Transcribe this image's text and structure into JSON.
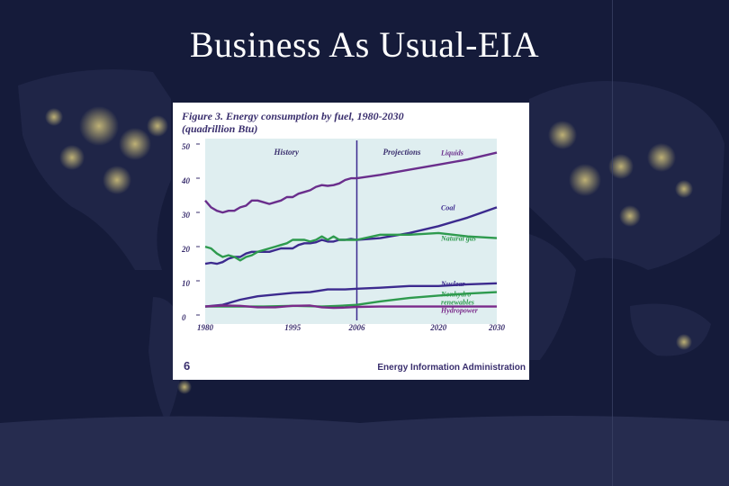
{
  "slide": {
    "title": "Business As Usual-EIA"
  },
  "figure": {
    "caption_line1": "Figure 3. Energy consumption by fuel, 1980-2030",
    "caption_line2": "(quadrillion Btu)",
    "page_number": "6",
    "source": "Energy Information Administration"
  },
  "colors": {
    "background": "#151b3a",
    "plot_bg": "#dfeef0",
    "liquids": "#6a2e8c",
    "coal": "#3c2a8e",
    "natural_gas": "#2e9a4e",
    "nuclear": "#3c2a8e",
    "nonhydro": "#2e9a4e",
    "hydropower": "#7a2a8a",
    "text": "#3a2f6e"
  },
  "chart_data": {
    "type": "line",
    "region_labels": [
      "History",
      "Projections"
    ],
    "divider_year": 2006,
    "x_ticks": [
      1980,
      1995,
      2006,
      2020,
      2030
    ],
    "y_ticks": [
      0,
      10,
      20,
      30,
      40,
      50
    ],
    "xlim": [
      1980,
      2030
    ],
    "ylim": [
      0,
      50
    ],
    "grid": false,
    "legend": "labels at right end of lines",
    "series": [
      {
        "name": "Liquids",
        "color_key": "liquids",
        "points": [
          [
            1980,
            34
          ],
          [
            1981,
            32
          ],
          [
            1982,
            31
          ],
          [
            1983,
            30.5
          ],
          [
            1984,
            31
          ],
          [
            1985,
            31
          ],
          [
            1986,
            32
          ],
          [
            1987,
            32.5
          ],
          [
            1988,
            34
          ],
          [
            1989,
            34
          ],
          [
            1990,
            33.5
          ],
          [
            1991,
            33
          ],
          [
            1992,
            33.5
          ],
          [
            1993,
            34
          ],
          [
            1994,
            35
          ],
          [
            1995,
            35
          ],
          [
            1996,
            36
          ],
          [
            1997,
            36.5
          ],
          [
            1998,
            37
          ],
          [
            1999,
            38
          ],
          [
            2000,
            38.5
          ],
          [
            2001,
            38.3
          ],
          [
            2002,
            38.5
          ],
          [
            2003,
            39
          ],
          [
            2004,
            40
          ],
          [
            2005,
            40.5
          ],
          [
            2006,
            40.5
          ],
          [
            2010,
            41.5
          ],
          [
            2015,
            43
          ],
          [
            2020,
            44.5
          ],
          [
            2025,
            46
          ],
          [
            2030,
            48
          ]
        ]
      },
      {
        "name": "Coal",
        "color_key": "coal",
        "points": [
          [
            1980,
            15.5
          ],
          [
            1981,
            15.8
          ],
          [
            1982,
            15.5
          ],
          [
            1983,
            16
          ],
          [
            1984,
            17
          ],
          [
            1985,
            17.5
          ],
          [
            1986,
            17.5
          ],
          [
            1987,
            18.5
          ],
          [
            1988,
            19
          ],
          [
            1989,
            19
          ],
          [
            1990,
            19
          ],
          [
            1991,
            19
          ],
          [
            1992,
            19.5
          ],
          [
            1993,
            20
          ],
          [
            1994,
            20
          ],
          [
            1995,
            20
          ],
          [
            1996,
            21
          ],
          [
            1997,
            21.5
          ],
          [
            1998,
            21.5
          ],
          [
            1999,
            21.8
          ],
          [
            2000,
            22.5
          ],
          [
            2001,
            22
          ],
          [
            2002,
            22
          ],
          [
            2003,
            22.5
          ],
          [
            2004,
            22.5
          ],
          [
            2005,
            22.8
          ],
          [
            2006,
            22.5
          ],
          [
            2010,
            23
          ],
          [
            2015,
            24.5
          ],
          [
            2020,
            26.5
          ],
          [
            2025,
            29
          ],
          [
            2030,
            32
          ]
        ]
      },
      {
        "name": "Natural gas",
        "color_key": "natural_gas",
        "points": [
          [
            1980,
            20.5
          ],
          [
            1981,
            20
          ],
          [
            1982,
            18.5
          ],
          [
            1983,
            17.5
          ],
          [
            1984,
            18
          ],
          [
            1985,
            17.5
          ],
          [
            1986,
            16.5
          ],
          [
            1987,
            17.5
          ],
          [
            1988,
            18
          ],
          [
            1989,
            19
          ],
          [
            1990,
            19.5
          ],
          [
            1991,
            20
          ],
          [
            1992,
            20.5
          ],
          [
            1993,
            21
          ],
          [
            1994,
            21.5
          ],
          [
            1995,
            22.5
          ],
          [
            1996,
            22.5
          ],
          [
            1997,
            22.5
          ],
          [
            1998,
            22
          ],
          [
            1999,
            22.5
          ],
          [
            2000,
            23.5
          ],
          [
            2001,
            22.5
          ],
          [
            2002,
            23.5
          ],
          [
            2003,
            22.5
          ],
          [
            2004,
            22.5
          ],
          [
            2005,
            22.5
          ],
          [
            2006,
            22.5
          ],
          [
            2010,
            24
          ],
          [
            2015,
            24
          ],
          [
            2020,
            24.5
          ],
          [
            2025,
            23.5
          ],
          [
            2030,
            23
          ]
        ]
      },
      {
        "name": "Nuclear",
        "color_key": "nuclear",
        "points": [
          [
            1980,
            3
          ],
          [
            1983,
            3.5
          ],
          [
            1986,
            5
          ],
          [
            1989,
            6
          ],
          [
            1992,
            6.5
          ],
          [
            1995,
            7
          ],
          [
            1998,
            7.2
          ],
          [
            2001,
            8
          ],
          [
            2004,
            8
          ],
          [
            2006,
            8.2
          ],
          [
            2010,
            8.5
          ],
          [
            2015,
            9
          ],
          [
            2020,
            9
          ],
          [
            2025,
            9.5
          ],
          [
            2030,
            9.8
          ]
        ]
      },
      {
        "name": "Nonhydro renewables",
        "label_lines": [
          "Nonhydro",
          "renewables"
        ],
        "color_key": "nonhydro",
        "points": [
          [
            1980,
            3
          ],
          [
            1985,
            3
          ],
          [
            1990,
            3
          ],
          [
            1995,
            3.2
          ],
          [
            2000,
            3
          ],
          [
            2003,
            3.2
          ],
          [
            2006,
            3.5
          ],
          [
            2010,
            4.5
          ],
          [
            2015,
            5.5
          ],
          [
            2020,
            6.2
          ],
          [
            2025,
            6.8
          ],
          [
            2030,
            7.2
          ]
        ]
      },
      {
        "name": "Hydropower",
        "color_key": "hydropower",
        "points": [
          [
            1980,
            3
          ],
          [
            1983,
            3.3
          ],
          [
            1986,
            3.2
          ],
          [
            1989,
            2.8
          ],
          [
            1992,
            2.8
          ],
          [
            1995,
            3.2
          ],
          [
            1998,
            3.3
          ],
          [
            2000,
            2.8
          ],
          [
            2002,
            2.6
          ],
          [
            2004,
            2.7
          ],
          [
            2006,
            2.9
          ],
          [
            2010,
            3
          ],
          [
            2020,
            3
          ],
          [
            2030,
            3
          ]
        ]
      }
    ]
  }
}
